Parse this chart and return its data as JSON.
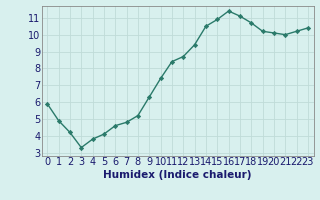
{
  "x": [
    0,
    1,
    2,
    3,
    4,
    5,
    6,
    7,
    8,
    9,
    10,
    11,
    12,
    13,
    14,
    15,
    16,
    17,
    18,
    19,
    20,
    21,
    22,
    23
  ],
  "y": [
    5.9,
    4.9,
    4.2,
    3.3,
    3.8,
    4.1,
    4.6,
    4.8,
    5.2,
    6.3,
    7.4,
    8.4,
    8.7,
    9.4,
    10.5,
    10.9,
    11.4,
    11.1,
    10.7,
    10.2,
    10.1,
    10.0,
    10.2,
    10.4
  ],
  "line_color": "#2a7a6a",
  "marker_color": "#2a7a6a",
  "bg_color": "#d8f0ee",
  "grid_color": "#c0dbd8",
  "xlabel": "Humidex (Indice chaleur)",
  "ylim": [
    2.8,
    11.7
  ],
  "xlim": [
    -0.5,
    23.5
  ],
  "yticks": [
    3,
    4,
    5,
    6,
    7,
    8,
    9,
    10,
    11
  ],
  "xtick_labels": [
    "0",
    "1",
    "2",
    "3",
    "4",
    "5",
    "6",
    "7",
    "8",
    "9",
    "10",
    "11",
    "12",
    "13",
    "14",
    "15",
    "16",
    "17",
    "18",
    "19",
    "20",
    "21",
    "22",
    "23"
  ],
  "fig_bg": "#d8f0ee",
  "xlabel_fontsize": 7.5,
  "tick_fontsize": 7.0,
  "xlabel_color": "#1a1a6e",
  "tick_color": "#1a1a6e"
}
